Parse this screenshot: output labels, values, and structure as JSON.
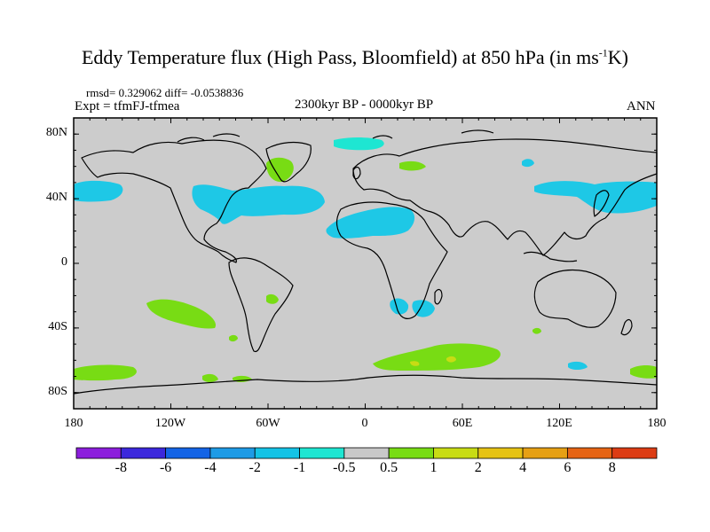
{
  "title": {
    "main": "Eddy Temperature flux (High Pass, Bloomfield) at 850 hPa (in ms",
    "sup": "-1",
    "tail": "K)"
  },
  "stats": "rmsd= 0.329062 diff= -0.0538836",
  "expt": "Expt = tfmFJ-tfmea",
  "period": "2300kyr BP - 0000kyr BP",
  "season": "ANN",
  "map": {
    "lon_range": [
      -180,
      180
    ],
    "lat_range": [
      -90,
      90
    ],
    "y_ticks": [
      "80N",
      "40N",
      "0",
      "40S",
      "80S"
    ],
    "x_ticks": [
      "180",
      "120W",
      "60W",
      "0",
      "60E",
      "120E",
      "180"
    ],
    "background_color": "#cccccc"
  },
  "colorbar": {
    "levels": [
      "-8",
      "-6",
      "-4",
      "-2",
      "-1",
      "-0.5",
      "0.5",
      "1",
      "2",
      "4",
      "6",
      "8"
    ],
    "colors": [
      "#8c1edc",
      "#3c28dc",
      "#1464e6",
      "#1e9be6",
      "#14c3e6",
      "#1ee6d2",
      "#c8c8c8",
      "#78dc14",
      "#c8dc14",
      "#e6c314",
      "#e6a014",
      "#e66414",
      "#dc3c14"
    ]
  }
}
